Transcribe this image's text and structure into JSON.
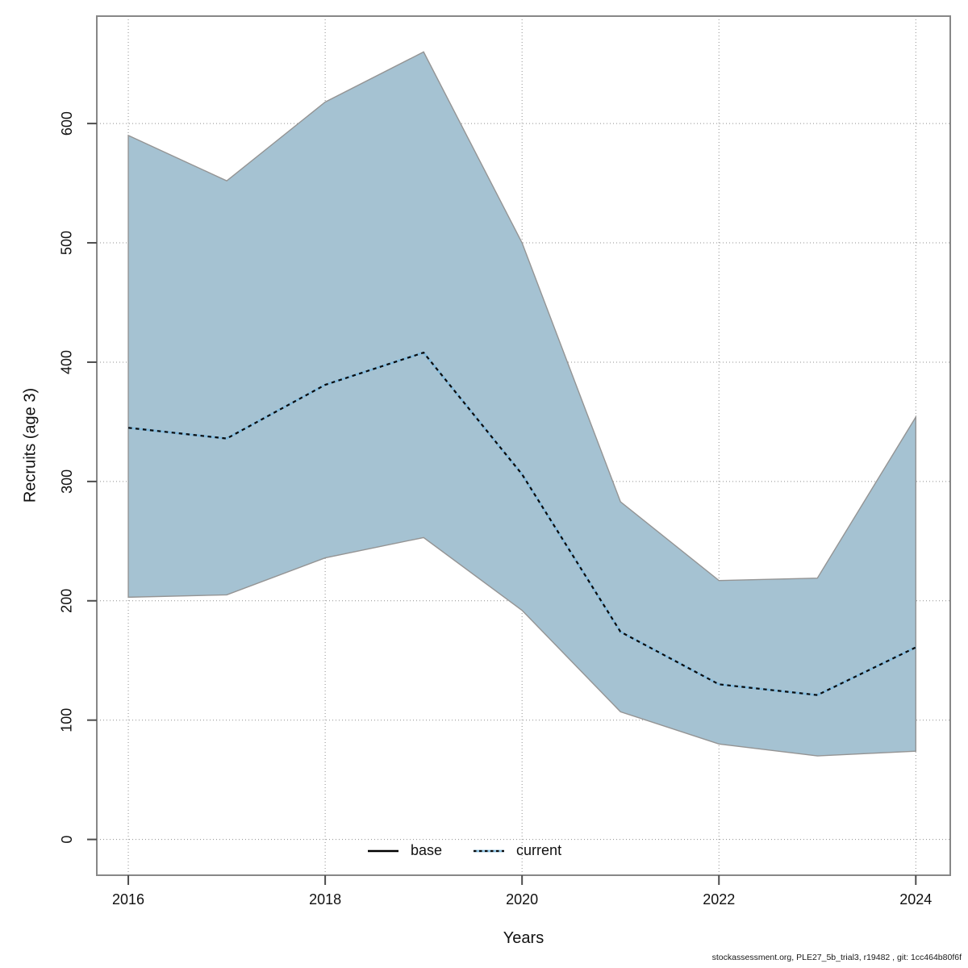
{
  "chart_data": {
    "type": "area",
    "title": "",
    "xlabel": "Years",
    "ylabel": "Recruits (age 3)",
    "x": [
      2016,
      2017,
      2018,
      2019,
      2020,
      2021,
      2022,
      2023,
      2024
    ],
    "series": [
      {
        "name": "ci-band",
        "type": "band",
        "fill": "#a5c2d2",
        "edge_color": "#949494",
        "upper": [
          590,
          552,
          618,
          660,
          500,
          283,
          217,
          219,
          354
        ],
        "lower": [
          203,
          205,
          236,
          253,
          192,
          107,
          80,
          70,
          74
        ]
      },
      {
        "name": "current",
        "type": "line",
        "style": "dotted",
        "color": "#0b0b0b",
        "halo_color": "#85bcde",
        "values": [
          345,
          336,
          381,
          408,
          306,
          174,
          130,
          121,
          161
        ]
      }
    ],
    "legend": [
      {
        "label": "base",
        "line": "solid",
        "color": "#000000"
      },
      {
        "label": "current",
        "line": "dotted",
        "color": "#0b0b0b",
        "halo_color": "#85bcde"
      }
    ],
    "legend_position": "bottom-center-inside",
    "xticks": [
      2016,
      2018,
      2020,
      2022,
      2024
    ],
    "yticks": [
      0,
      100,
      200,
      300,
      400,
      500,
      600
    ],
    "xlim": [
      2015.68,
      2024.35
    ],
    "ylim": [
      -30,
      690
    ],
    "grid": true,
    "grid_style": "dotted",
    "box_color": "#878787",
    "tick_color": "#4d4d4d"
  },
  "footer": {
    "credit": "stockassessment.org, PLE27_5b_trial3, r19482 , git: 1cc464b80f6f"
  }
}
